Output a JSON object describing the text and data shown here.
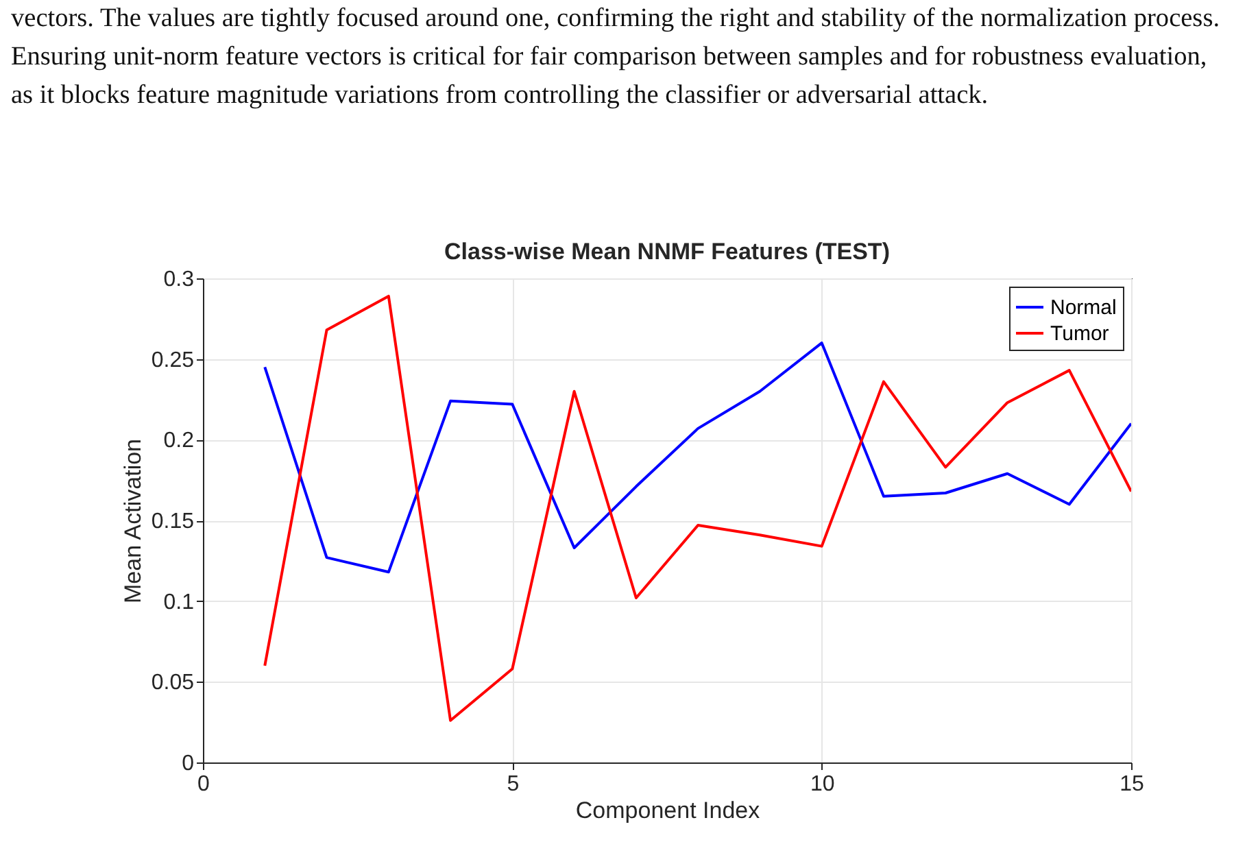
{
  "chart_data": {
    "type": "line",
    "title": "Class-wise Mean NNMF Features (TEST)",
    "xlabel": "Component Index",
    "ylabel": "Mean Activation",
    "annotations": [
      "vectors. The values are tightly focused around one, confirming the right and stability of the normalization process.",
      "Ensuring unit-norm feature vectors is critical for fair comparison between samples and for robustness evaluation,",
      "as it blocks feature magnitude variations from controlling the classifier or adversarial attack."
    ],
    "x": [
      1,
      2,
      3,
      4,
      5,
      6,
      7,
      8,
      9,
      10,
      11,
      12,
      13,
      14,
      15
    ],
    "series": [
      {
        "name": "Normal",
        "color": "#0000ff",
        "values": [
          0.245,
          0.127,
          0.118,
          0.224,
          0.222,
          0.133,
          0.171,
          0.207,
          0.23,
          0.26,
          0.165,
          0.167,
          0.179,
          0.16,
          0.21
        ]
      },
      {
        "name": "Tumor",
        "color": "#ff0000",
        "values": [
          0.06,
          0.268,
          0.289,
          0.026,
          0.058,
          0.23,
          0.102,
          0.147,
          0.141,
          0.134,
          0.236,
          0.183,
          0.223,
          0.243,
          0.168
        ]
      }
    ],
    "xlim": [
      0,
      15
    ],
    "xticks": [
      0,
      5,
      10,
      15
    ],
    "ylim": [
      0,
      0.3
    ],
    "yticks": [
      0,
      0.05,
      0.1,
      0.15,
      0.2,
      0.25,
      0.3
    ],
    "grid": true,
    "legend": "top right",
    "line_style": "solid",
    "marker": "none"
  }
}
